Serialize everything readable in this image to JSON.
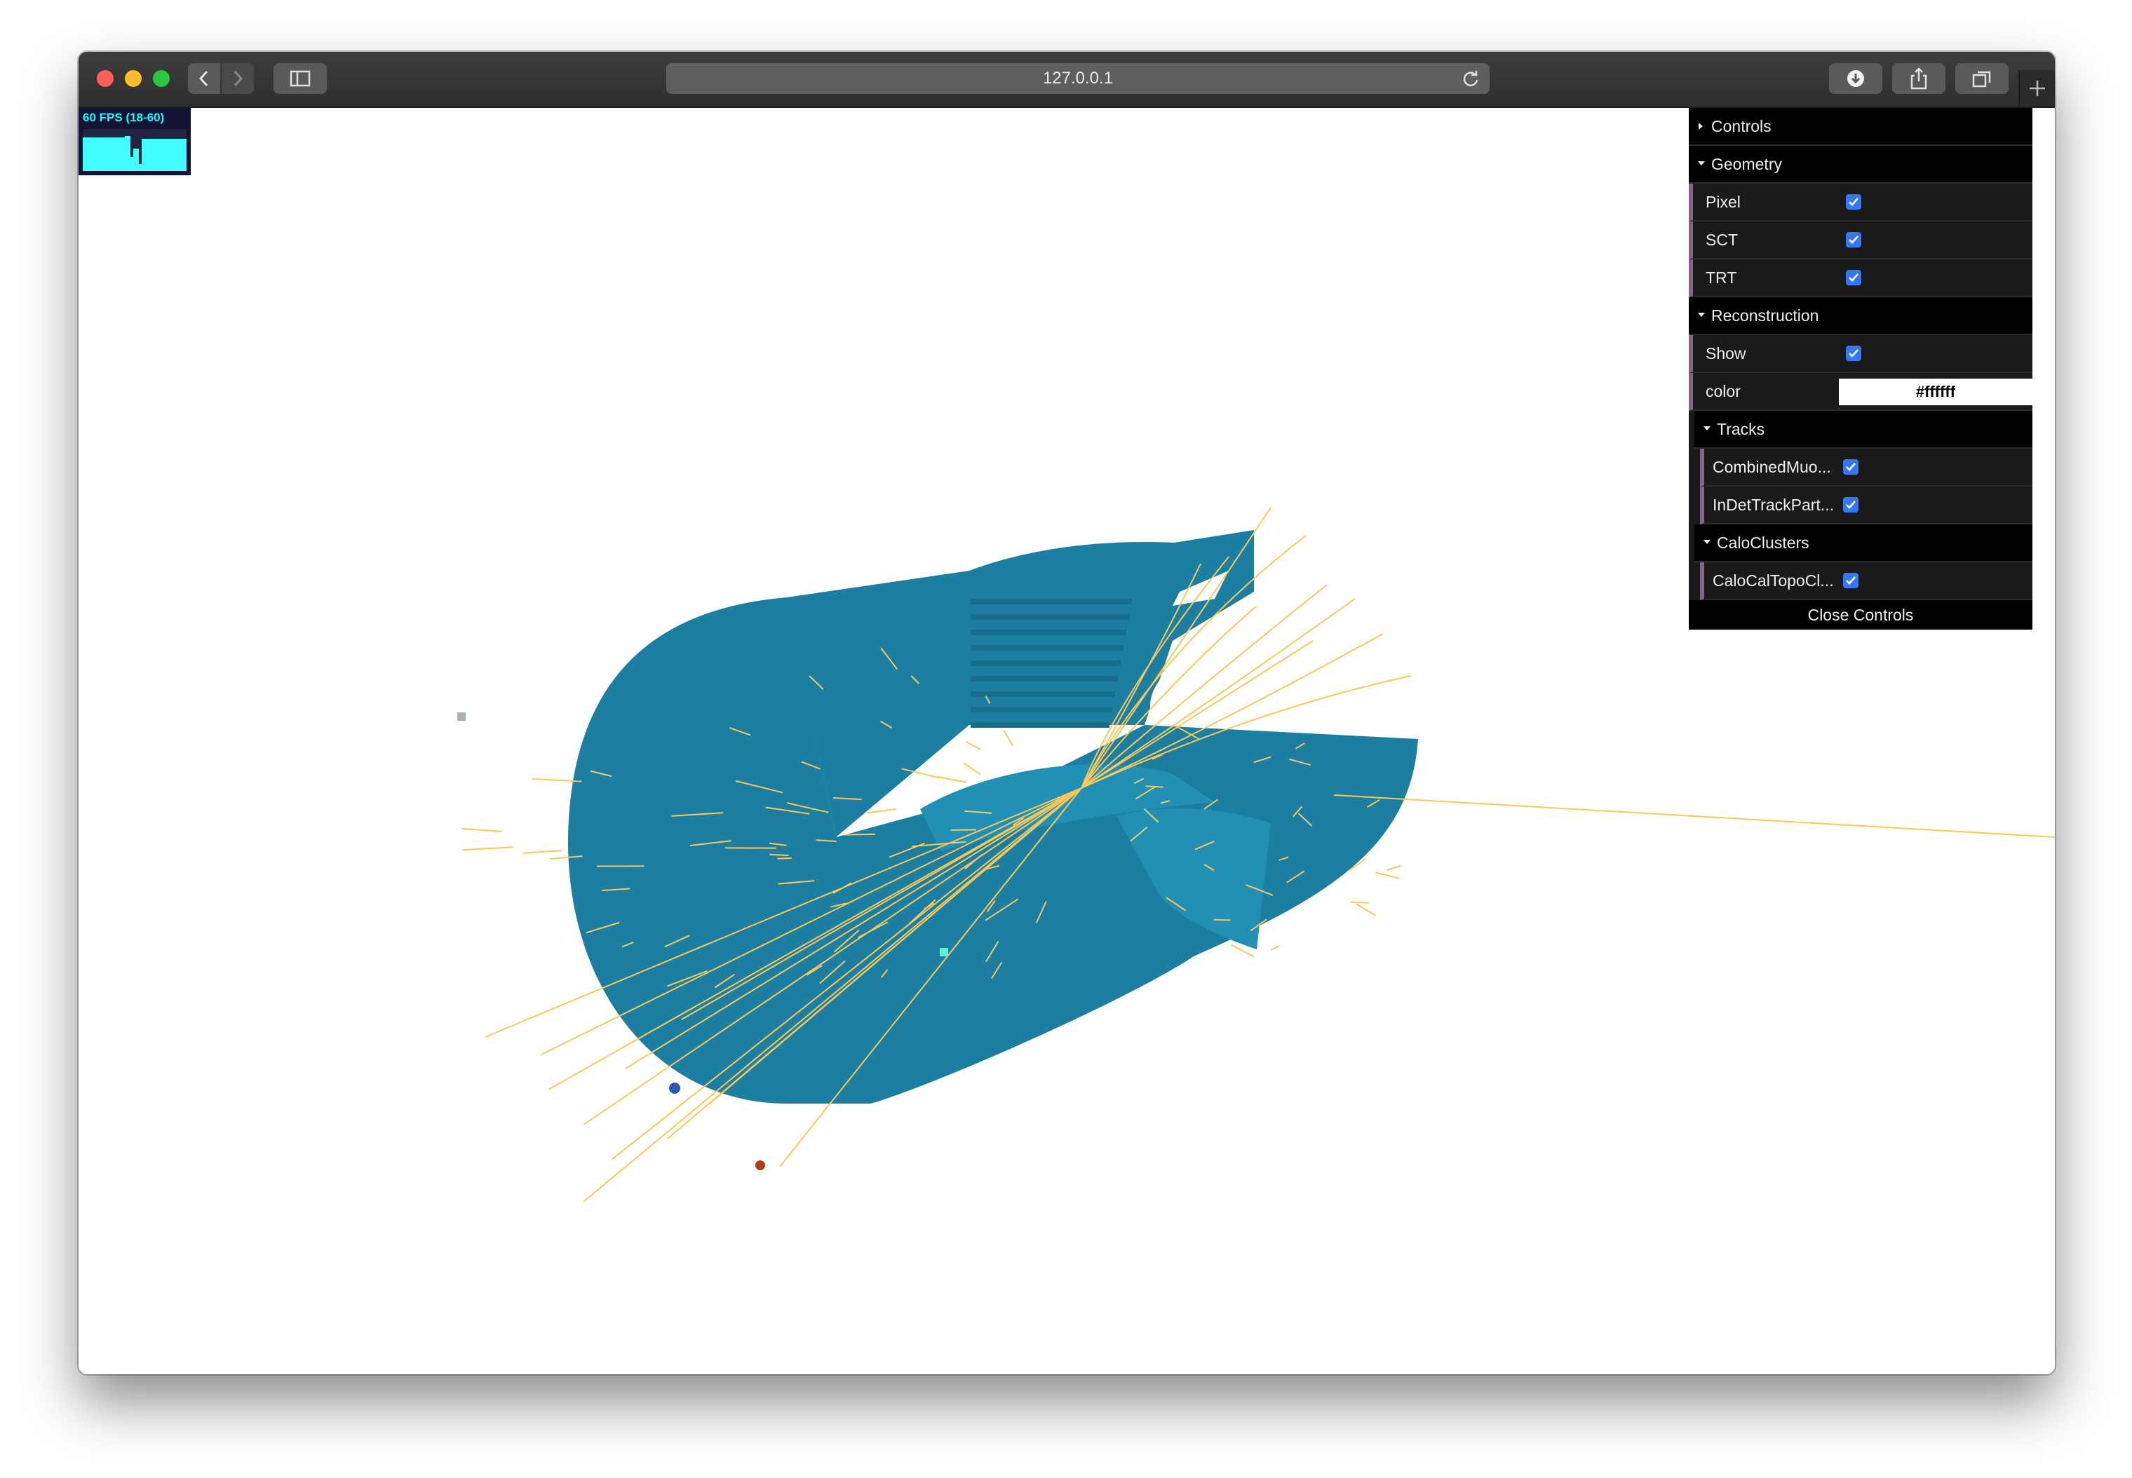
{
  "browser": {
    "url": "127.0.0.1"
  },
  "stats": {
    "fps_label": "60 FPS (18-60)"
  },
  "controls": {
    "title": "Controls",
    "folders": [
      {
        "title": "Geometry",
        "items": [
          {
            "label": "Pixel",
            "checked": true
          },
          {
            "label": "SCT",
            "checked": true
          },
          {
            "label": "TRT",
            "checked": true
          }
        ]
      },
      {
        "title": "Reconstruction",
        "items": [
          {
            "label": "Show",
            "checked": true
          }
        ],
        "color_label": "color",
        "color_value": "#ffffff",
        "subfolders": [
          {
            "title": "Tracks",
            "items": [
              {
                "label": "CombinedMuo...",
                "checked": true
              },
              {
                "label": "InDetTrackPart...",
                "checked": true
              }
            ]
          },
          {
            "title": "CaloClusters",
            "items": [
              {
                "label": "CaloCalTopoCl...",
                "checked": true
              }
            ]
          }
        ]
      }
    ],
    "close_label": "Close Controls"
  },
  "scene": {
    "detector_color": "#1c7fa1",
    "detector_color_light": "#2290b4",
    "track_color": "#f7c85a"
  }
}
